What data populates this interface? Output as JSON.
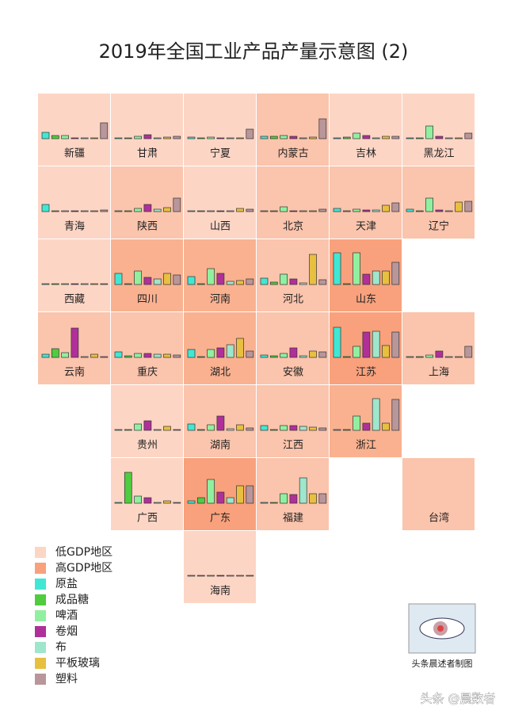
{
  "chart_data": {
    "type": "tile-bar",
    "title": "2019年全国工业产品产量示意图 (2)",
    "gdp_legend": [
      {
        "name": "低GDP地区",
        "color": "#fdd5c5"
      },
      {
        "name": "高GDP地区",
        "color": "#f8a17c"
      }
    ],
    "series": [
      {
        "name": "原盐",
        "color": "#40e8d4"
      },
      {
        "name": "成品糖",
        "color": "#4fcc40"
      },
      {
        "name": "啤酒",
        "color": "#90f0a0"
      },
      {
        "name": "卷烟",
        "color": "#b0309a"
      },
      {
        "name": "布",
        "color": "#9ee6cc"
      },
      {
        "name": "平板玻璃",
        "color": "#e8c040"
      },
      {
        "name": "塑料",
        "color": "#b8969a"
      }
    ],
    "regions": [
      {
        "name": "新疆",
        "fill": "#fdd5c5",
        "values": [
          8,
          4,
          4,
          1,
          1,
          1,
          20
        ]
      },
      {
        "name": "甘肃",
        "fill": "#fdd5c5",
        "values": [
          1,
          1,
          3,
          5,
          1,
          2,
          3
        ]
      },
      {
        "name": "宁夏",
        "fill": "#fdd5c5",
        "values": [
          2,
          1,
          2,
          1,
          1,
          1,
          12
        ]
      },
      {
        "name": "内蒙古",
        "fill": "#fbc4ac",
        "values": [
          3,
          3,
          4,
          3,
          1,
          2,
          25
        ]
      },
      {
        "name": "吉林",
        "fill": "#fdd5c5",
        "values": [
          1,
          2,
          7,
          4,
          1,
          3,
          3
        ]
      },
      {
        "name": "黑龙江",
        "fill": "#fdd5c5",
        "values": [
          1,
          1,
          16,
          3,
          1,
          1,
          7
        ]
      },
      {
        "name": "青海",
        "fill": "#fdd5c5",
        "values": [
          9,
          1,
          1,
          1,
          1,
          1,
          2
        ]
      },
      {
        "name": "陕西",
        "fill": "#fbc4ac",
        "values": [
          1,
          1,
          4,
          9,
          3,
          5,
          17
        ]
      },
      {
        "name": "山西",
        "fill": "#fdd5c5",
        "values": [
          1,
          1,
          1,
          1,
          1,
          4,
          3
        ]
      },
      {
        "name": "北京",
        "fill": "#fbc4ac",
        "values": [
          1,
          1,
          6,
          1,
          1,
          1,
          3
        ]
      },
      {
        "name": "天津",
        "fill": "#fbc4ac",
        "values": [
          4,
          1,
          3,
          2,
          2,
          8,
          11
        ]
      },
      {
        "name": "辽宁",
        "fill": "#fbc4ac",
        "values": [
          3,
          1,
          17,
          2,
          1,
          12,
          13
        ]
      },
      {
        "name": "西藏",
        "fill": "#fdd5c5",
        "values": [
          1,
          1,
          1,
          1,
          1,
          1,
          1
        ]
      },
      {
        "name": "四川",
        "fill": "#f9b190",
        "values": [
          14,
          1,
          17,
          9,
          7,
          14,
          12
        ]
      },
      {
        "name": "河南",
        "fill": "#f9b190",
        "values": [
          10,
          1,
          20,
          14,
          4,
          5,
          7
        ]
      },
      {
        "name": "河北",
        "fill": "#fbc4ac",
        "values": [
          8,
          3,
          13,
          7,
          2,
          38,
          6
        ]
      },
      {
        "name": "山东",
        "fill": "#f8a17c",
        "values": [
          40,
          1,
          40,
          13,
          17,
          17,
          28
        ]
      },
      {
        "name": "云南",
        "fill": "#fbc4ac",
        "values": [
          4,
          11,
          6,
          37,
          1,
          4,
          1
        ]
      },
      {
        "name": "重庆",
        "fill": "#fbc4ac",
        "values": [
          7,
          2,
          5,
          5,
          4,
          4,
          3
        ]
      },
      {
        "name": "湖北",
        "fill": "#f9b190",
        "values": [
          10,
          1,
          10,
          12,
          16,
          24,
          8
        ]
      },
      {
        "name": "安徽",
        "fill": "#fbc4ac",
        "values": [
          3,
          2,
          5,
          12,
          2,
          8,
          7
        ]
      },
      {
        "name": "江苏",
        "fill": "#f8a17c",
        "values": [
          38,
          1,
          14,
          32,
          33,
          15,
          32
        ]
      },
      {
        "name": "上海",
        "fill": "#fbc4ac",
        "values": [
          1,
          1,
          3,
          8,
          1,
          1,
          14
        ]
      },
      {
        "name": "贵州",
        "fill": "#fdd5c5",
        "values": [
          1,
          1,
          8,
          12,
          1,
          5,
          1
        ]
      },
      {
        "name": "湖南",
        "fill": "#fbc4ac",
        "values": [
          8,
          1,
          7,
          18,
          2,
          7,
          3
        ]
      },
      {
        "name": "江西",
        "fill": "#fbc4ac",
        "values": [
          6,
          1,
          6,
          6,
          5,
          4,
          3
        ]
      },
      {
        "name": "浙江",
        "fill": "#f9b190",
        "values": [
          1,
          1,
          18,
          9,
          40,
          9,
          39
        ]
      },
      {
        "name": "广西",
        "fill": "#fdd5c5",
        "values": [
          1,
          39,
          9,
          7,
          1,
          3,
          1
        ]
      },
      {
        "name": "广东",
        "fill": "#f8a17c",
        "values": [
          3,
          7,
          30,
          14,
          7,
          22,
          22
        ]
      },
      {
        "name": "福建",
        "fill": "#fbc4ac",
        "values": [
          1,
          1,
          12,
          11,
          32,
          12,
          12
        ]
      },
      {
        "name": "台湾",
        "fill": "#fbc4ac"
      },
      {
        "name": "海南",
        "fill": "#fdd5c5",
        "values": [
          1,
          1,
          1,
          1,
          1,
          1,
          1
        ]
      }
    ],
    "credit": "头条晨述者制图",
    "watermark": "头条 @晨数者"
  }
}
